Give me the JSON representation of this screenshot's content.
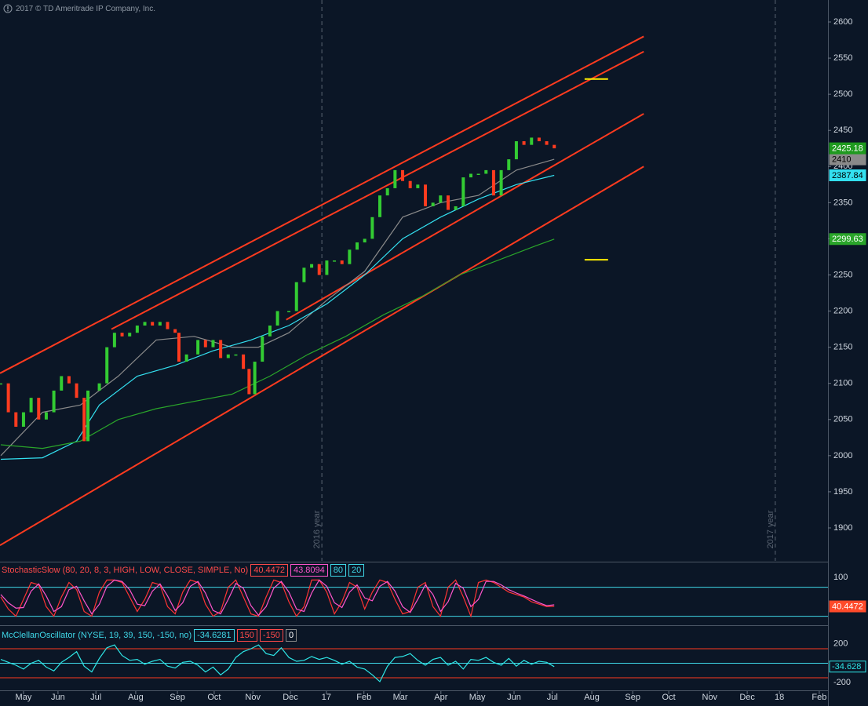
{
  "header": {
    "copyright": "2017 © TD Ameritrade IP Company, Inc."
  },
  "chart_data": [
    {
      "type": "candle",
      "up_color": "#33cc33",
      "down_color": "#ff3b1f",
      "xlim": [
        -0.62,
        21.22
      ],
      "xticks": [
        {
          "value": 0,
          "label": "May"
        },
        {
          "value": 0.91,
          "label": "Jun"
        },
        {
          "value": 1.91,
          "label": "Jul"
        },
        {
          "value": 2.96,
          "label": "Aug"
        },
        {
          "value": 4.06,
          "label": "Sep"
        },
        {
          "value": 5.03,
          "label": "Oct"
        },
        {
          "value": 6.05,
          "label": "Nov"
        },
        {
          "value": 7.04,
          "label": "Dec"
        },
        {
          "value": 7.99,
          "label": "17"
        },
        {
          "value": 8.98,
          "label": "Feb"
        },
        {
          "value": 9.94,
          "label": "Mar"
        },
        {
          "value": 11.01,
          "label": "Apr"
        },
        {
          "value": 11.97,
          "label": "May"
        },
        {
          "value": 12.94,
          "label": "Jun"
        },
        {
          "value": 13.95,
          "label": "Jul"
        },
        {
          "value": 14.99,
          "label": "Aug"
        },
        {
          "value": 16.07,
          "label": "Sep"
        },
        {
          "value": 17.02,
          "label": "Oct"
        },
        {
          "value": 18.1,
          "label": "Nov"
        },
        {
          "value": 19.09,
          "label": "Dec"
        },
        {
          "value": 19.94,
          "label": "18"
        },
        {
          "value": 20.99,
          "label": "Feb"
        }
      ],
      "year_lines": [
        {
          "value": 7.87,
          "label": "2016 year"
        },
        {
          "value": 19.83,
          "label": "2017 year"
        }
      ],
      "ylim": [
        1854.4,
        2630.4
      ],
      "yticks": [
        1900,
        1950,
        2000,
        2050,
        2100,
        2150,
        2200,
        2250,
        2300,
        2350,
        2400,
        2450,
        2500,
        2550,
        2600
      ],
      "x": [
        -0.6,
        -0.4,
        -0.2,
        0,
        0.2,
        0.4,
        0.6,
        0.8,
        1.0,
        1.2,
        1.4,
        1.6,
        1.7,
        2.0,
        2.2,
        2.4,
        2.6,
        2.8,
        3.0,
        3.2,
        3.4,
        3.6,
        3.8,
        4.0,
        4.1,
        4.3,
        4.6,
        4.8,
        5.0,
        5.2,
        5.4,
        5.6,
        5.8,
        5.95,
        6.1,
        6.3,
        6.5,
        6.7,
        7.0,
        7.2,
        7.4,
        7.6,
        7.8,
        8.0,
        8.2,
        8.4,
        8.6,
        8.8,
        9.0,
        9.2,
        9.4,
        9.6,
        9.8,
        10.0,
        10.2,
        10.4,
        10.6,
        10.8,
        11.0,
        11.2,
        11.4,
        11.6,
        11.8,
        12.0,
        12.2,
        12.4,
        12.6,
        12.8,
        13.0,
        13.2,
        13.4,
        13.6,
        13.8,
        14.0
      ],
      "values": [
        2100,
        2060,
        2040,
        2060,
        2080,
        2050,
        2060,
        2090,
        2110,
        2100,
        2080,
        2020,
        2090,
        2100,
        2150,
        2170,
        2165,
        2170,
        2180,
        2185,
        2180,
        2185,
        2175,
        2170,
        2130,
        2140,
        2160,
        2150,
        2160,
        2135,
        2140,
        2140,
        2120,
        2085,
        2130,
        2165,
        2180,
        2200,
        2200,
        2240,
        2260,
        2265,
        2250,
        2270,
        2270,
        2265,
        2285,
        2295,
        2300,
        2330,
        2360,
        2370,
        2395,
        2380,
        2370,
        2375,
        2345,
        2350,
        2360,
        2340,
        2345,
        2385,
        2390,
        2390,
        2395,
        2360,
        2395,
        2410,
        2435,
        2430,
        2440,
        2435,
        2430,
        2425.18
      ],
      "overlays": [
        {
          "color": "#8a8a8a",
          "text_color": "#000000",
          "x": [
            -0.6,
            0.5,
            1.5,
            2.5,
            3.5,
            4.5,
            5.5,
            6.2,
            7.0,
            8.0,
            9.0,
            10.0,
            11.0,
            12.0,
            13.0,
            14.0
          ],
          "values": [
            2000,
            2060,
            2070,
            2110,
            2160,
            2165,
            2150,
            2150,
            2170,
            2215,
            2255,
            2330,
            2350,
            2360,
            2395,
            2410
          ]
        },
        {
          "color": "#33e0f0",
          "text_color": "#000000",
          "x": [
            -0.6,
            0.5,
            1.4,
            2.0,
            3.0,
            4.0,
            5.0,
            6.0,
            7.0,
            8.0,
            9.0,
            10.0,
            11.0,
            12.0,
            13.0,
            14.0
          ],
          "values": [
            1995,
            1997,
            2020,
            2070,
            2110,
            2125,
            2145,
            2160,
            2180,
            2210,
            2250,
            2300,
            2330,
            2355,
            2375,
            2387.84
          ]
        },
        {
          "color": "#2aa52a",
          "text_color": "#ffffff",
          "x": [
            -0.6,
            0.5,
            1.5,
            2.5,
            3.5,
            4.5,
            5.5,
            6.5,
            7.5,
            8.5,
            9.5,
            10.5,
            11.5,
            12.5,
            13.5,
            14.0
          ],
          "values": [
            2015,
            2010,
            2020,
            2050,
            2065,
            2075,
            2085,
            2110,
            2140,
            2165,
            2195,
            2220,
            2250,
            2270,
            2290,
            2299.63
          ]
        }
      ],
      "trendlines": [
        {
          "color": "#ff3b1f",
          "x": [
            -0.62,
            16.36
          ],
          "values": [
            2114,
            2580
          ]
        },
        {
          "color": "#ff3b1f",
          "x": [
            2.32,
            16.36
          ],
          "values": [
            2175,
            2559
          ]
        },
        {
          "color": "#ff3b1f",
          "x": [
            6.93,
            16.36
          ],
          "values": [
            2188,
            2473
          ]
        },
        {
          "color": "#ff3b1f",
          "x": [
            -0.62,
            16.36
          ],
          "values": [
            1876,
            2400
          ]
        },
        {
          "color": "#ffee00",
          "x": [
            14.8,
            15.42
          ],
          "values": [
            2521,
            2521
          ]
        },
        {
          "color": "#ffee00",
          "x": [
            14.8,
            15.42
          ],
          "values": [
            2271,
            2271
          ]
        }
      ]
    },
    {
      "type": "line",
      "title": "StochasticSlow (80, 20, 8, 3, HIGH, LOW, CLOSE, SIMPLE, No)",
      "title_color": "#ff4a4a",
      "ylim": [
        3.2,
        129.7
      ],
      "yticks": [
        100
      ],
      "levels": [
        80,
        20
      ],
      "level_color": "#3fd8e8",
      "series": [
        {
          "color": "#ff3333",
          "x": [
            -0.6,
            -0.4,
            -0.2,
            0,
            0.2,
            0.4,
            0.6,
            0.8,
            1.0,
            1.2,
            1.4,
            1.6,
            1.8,
            2.0,
            2.2,
            2.4,
            2.6,
            2.8,
            3.0,
            3.2,
            3.4,
            3.6,
            3.8,
            4.0,
            4.2,
            4.4,
            4.6,
            4.8,
            5.0,
            5.2,
            5.4,
            5.6,
            5.8,
            6.0,
            6.2,
            6.4,
            6.6,
            6.8,
            7.0,
            7.2,
            7.4,
            7.6,
            7.8,
            8.0,
            8.2,
            8.4,
            8.6,
            8.8,
            9.0,
            9.2,
            9.4,
            9.6,
            9.8,
            10.0,
            10.2,
            10.4,
            10.6,
            10.8,
            11.0,
            11.2,
            11.4,
            11.6,
            11.8,
            12.0,
            12.2,
            12.4,
            12.6,
            12.8,
            13.0,
            13.2,
            13.4,
            13.6,
            13.8,
            14.0
          ],
          "values": [
            60,
            35,
            20,
            55,
            90,
            85,
            40,
            20,
            60,
            90,
            75,
            30,
            20,
            70,
            95,
            95,
            90,
            60,
            30,
            55,
            90,
            85,
            40,
            25,
            70,
            95,
            90,
            45,
            20,
            30,
            80,
            95,
            60,
            25,
            20,
            60,
            95,
            90,
            50,
            20,
            40,
            95,
            95,
            70,
            25,
            50,
            90,
            80,
            35,
            70,
            95,
            90,
            55,
            25,
            30,
            80,
            90,
            40,
            20,
            80,
            95,
            60,
            20,
            90,
            95,
            90,
            80,
            70,
            65,
            60,
            50,
            45,
            40,
            40.4472
          ]
        },
        {
          "color": "#ff55cc",
          "x": [
            -0.6,
            -0.4,
            -0.2,
            0,
            0.2,
            0.4,
            0.6,
            0.8,
            1.0,
            1.2,
            1.4,
            1.6,
            1.8,
            2.0,
            2.2,
            2.4,
            2.6,
            2.8,
            3.0,
            3.2,
            3.4,
            3.6,
            3.8,
            4.0,
            4.2,
            4.4,
            4.6,
            4.8,
            5.0,
            5.2,
            5.4,
            5.6,
            5.8,
            6.0,
            6.2,
            6.4,
            6.6,
            6.8,
            7.0,
            7.2,
            7.4,
            7.6,
            7.8,
            8.0,
            8.2,
            8.4,
            8.6,
            8.8,
            9.0,
            9.2,
            9.4,
            9.6,
            9.8,
            10.0,
            10.2,
            10.4,
            10.6,
            10.8,
            11.0,
            11.2,
            11.4,
            11.6,
            11.8,
            12.0,
            12.2,
            12.4,
            12.6,
            12.8,
            13.0,
            13.2,
            13.4,
            13.6,
            13.8,
            14.0
          ],
          "values": [
            65,
            48,
            37,
            38,
            72,
            87,
            62,
            30,
            40,
            75,
            82,
            52,
            25,
            45,
            82,
            95,
            92,
            75,
            45,
            42,
            72,
            87,
            62,
            32,
            48,
            82,
            92,
            68,
            32,
            25,
            55,
            88,
            78,
            42,
            22,
            40,
            78,
            92,
            70,
            35,
            30,
            68,
            95,
            82,
            48,
            38,
            70,
            85,
            58,
            52,
            82,
            92,
            72,
            40,
            28,
            55,
            85,
            65,
            30,
            50,
            88,
            78,
            40,
            55,
            92,
            92,
            85,
            75,
            68,
            62,
            55,
            48,
            42,
            43.8094
          ]
        }
      ]
    },
    {
      "type": "line",
      "title": "McClellanOscillator (NYSE, 19, 39, 150, -150, no)",
      "title_color": "#3fd8e8",
      "ylim": [
        -280,
        369
      ],
      "yticks": [
        200,
        -200
      ],
      "levels": [
        150,
        -150,
        0
      ],
      "level_colors": [
        "#ff3b1f",
        "#ff3b1f",
        "#3fd8e8"
      ],
      "series": [
        {
          "color": "#2ee6e6",
          "value_label": "-34.628",
          "x": [
            -0.6,
            -0.4,
            -0.2,
            0,
            0.2,
            0.4,
            0.6,
            0.8,
            1.0,
            1.2,
            1.4,
            1.6,
            1.8,
            2.0,
            2.2,
            2.4,
            2.6,
            2.8,
            3.0,
            3.2,
            3.4,
            3.6,
            3.8,
            4.0,
            4.2,
            4.4,
            4.6,
            4.8,
            5.0,
            5.2,
            5.4,
            5.6,
            5.8,
            6.0,
            6.2,
            6.4,
            6.6,
            6.8,
            7.0,
            7.2,
            7.4,
            7.6,
            7.8,
            8.0,
            8.2,
            8.4,
            8.6,
            8.8,
            9.0,
            9.2,
            9.4,
            9.6,
            9.8,
            10.0,
            10.2,
            10.4,
            10.6,
            10.8,
            11.0,
            11.2,
            11.4,
            11.6,
            11.8,
            12.0,
            12.2,
            12.4,
            12.6,
            12.8,
            13.0,
            13.2,
            13.4,
            13.6,
            13.8,
            14.0
          ],
          "values": [
            40,
            10,
            -20,
            -60,
            0,
            30,
            -40,
            -80,
            10,
            60,
            120,
            -30,
            -90,
            50,
            160,
            190,
            80,
            30,
            40,
            -10,
            20,
            40,
            -30,
            -50,
            10,
            20,
            -20,
            -90,
            -40,
            -120,
            -60,
            60,
            120,
            150,
            190,
            100,
            80,
            160,
            60,
            20,
            30,
            70,
            40,
            60,
            30,
            -10,
            20,
            -40,
            -60,
            -120,
            -190,
            -30,
            60,
            70,
            100,
            30,
            -20,
            40,
            60,
            -20,
            20,
            -60,
            40,
            30,
            60,
            10,
            -20,
            50,
            -30,
            30,
            -10,
            20,
            10,
            -34.6281
          ]
        }
      ]
    }
  ]
}
